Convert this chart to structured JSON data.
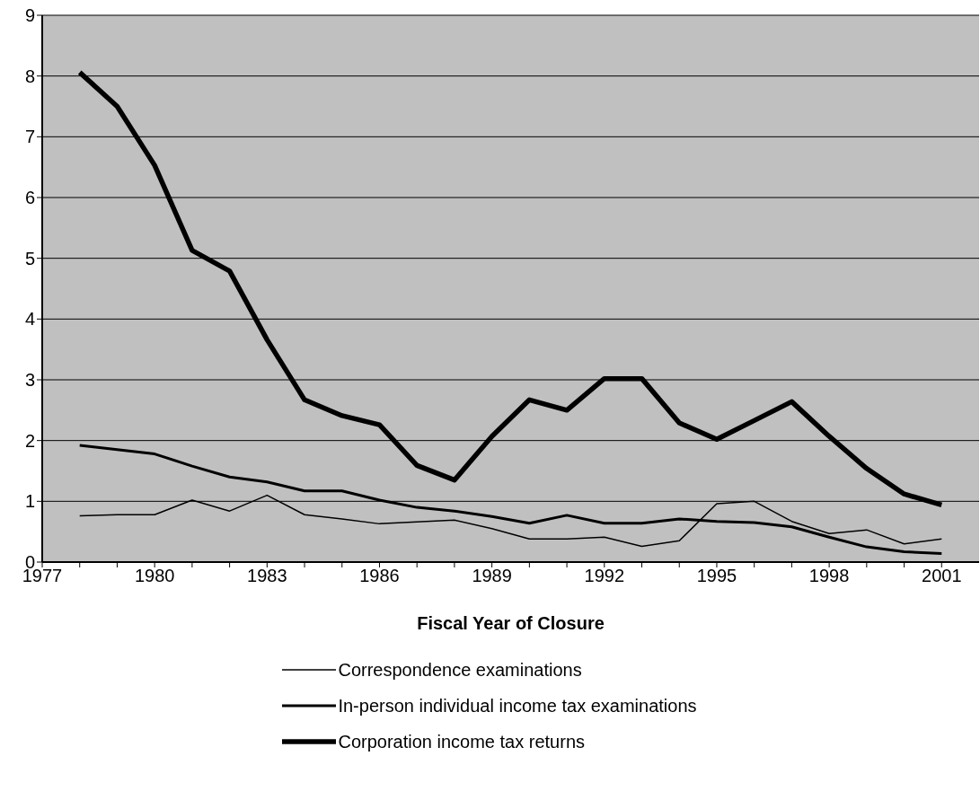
{
  "chart_data": {
    "type": "line",
    "xlabel": "Fiscal Year of Closure",
    "x": [
      1978,
      1979,
      1980,
      1981,
      1982,
      1983,
      1984,
      1985,
      1986,
      1987,
      1988,
      1989,
      1990,
      1991,
      1992,
      1993,
      1994,
      1995,
      1996,
      1997,
      1998,
      1999,
      2000,
      2001
    ],
    "series": [
      {
        "name": "Correspondence examinations",
        "color": "#000000",
        "values": [
          0.76,
          0.78,
          0.78,
          1.02,
          0.84,
          1.1,
          0.78,
          0.71,
          0.63,
          0.66,
          0.69,
          0.55,
          0.38,
          0.38,
          0.41,
          0.26,
          0.35,
          0.96,
          1.0,
          0.67,
          0.47,
          0.53,
          0.3,
          0.38
        ]
      },
      {
        "name": "In-person individual income tax examinations",
        "color": "#000000",
        "values": [
          1.92,
          1.85,
          1.78,
          1.58,
          1.4,
          1.32,
          1.17,
          1.17,
          1.02,
          0.9,
          0.84,
          0.75,
          0.64,
          0.77,
          0.64,
          0.64,
          0.71,
          0.67,
          0.65,
          0.58,
          0.41,
          0.25,
          0.17,
          0.14
        ]
      },
      {
        "name": "Corporation income tax returns",
        "color": "#000000",
        "values": [
          8.06,
          7.5,
          6.53,
          5.13,
          4.79,
          3.66,
          2.67,
          2.41,
          2.26,
          1.59,
          1.35,
          2.07,
          2.67,
          2.5,
          3.02,
          3.02,
          2.29,
          2.02,
          2.33,
          2.64,
          2.07,
          1.54,
          1.12,
          0.94
        ]
      }
    ],
    "xlim": [
      1977,
      2002
    ],
    "xticks": [
      1977,
      {
        "value": 1978,
        "label": null
      },
      {
        "value": 1979,
        "label": null
      },
      1980,
      {
        "value": 1981,
        "label": null
      },
      {
        "value": 1982,
        "label": null
      },
      1983,
      {
        "value": 1984,
        "label": null
      },
      {
        "value": 1985,
        "label": null
      },
      1986,
      {
        "value": 1987,
        "label": null
      },
      {
        "value": 1988,
        "label": null
      },
      1989,
      {
        "value": 1990,
        "label": null
      },
      {
        "value": 1991,
        "label": null
      },
      1992,
      {
        "value": 1993,
        "label": null
      },
      {
        "value": 1994,
        "label": null
      },
      1995,
      {
        "value": 1996,
        "label": null
      },
      {
        "value": 1997,
        "label": null
      },
      1998,
      {
        "value": 1999,
        "label": null
      },
      {
        "value": 2000,
        "label": null
      },
      2001
    ],
    "ylim": [
      0,
      9
    ],
    "yticks": [
      0,
      1,
      2,
      3,
      4,
      5,
      6,
      7,
      8,
      9
    ],
    "grid": "y",
    "legend": "bottom",
    "marker": "none",
    "line_style": "solid"
  }
}
